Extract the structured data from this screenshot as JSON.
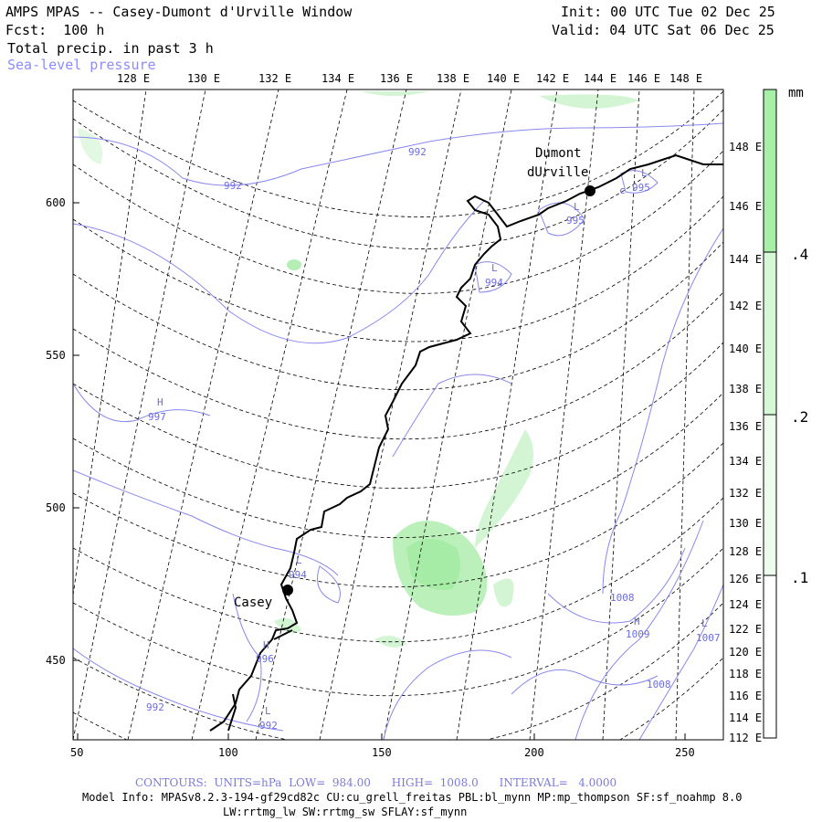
{
  "header": {
    "title": "AMPS MPAS -- Casey-Dumont d'Urville Window",
    "fcst": "Fcst:  100 h",
    "field": "Total precip. in past 3 h",
    "overlay": "Sea-level pressure",
    "init": "Init: 00 UTC Tue 02 Dec 25",
    "valid": "Valid: 04 UTC Sat 06 Dec 25"
  },
  "axes": {
    "x_ticks": [
      "50",
      "100",
      "150",
      "200",
      "250"
    ],
    "y_ticks": [
      "450",
      "500",
      "550",
      "600"
    ],
    "top_lon": [
      "128 E",
      "130 E",
      "132 E",
      "134 E",
      "136 E",
      "138 E",
      "140 E",
      "142 E",
      "144 E",
      "146 E",
      "148 E"
    ],
    "right_lon": [
      "148 E",
      "146 E",
      "144 E",
      "142 E",
      "140 E",
      "138 E",
      "136 E",
      "134 E",
      "132 E",
      "130 E",
      "128 E",
      "126 E",
      "124 E",
      "122 E",
      "120 E",
      "118 E",
      "116 E",
      "114 E",
      "112 E"
    ]
  },
  "colorbar": {
    "unit": "mm",
    "labels": [
      ".4",
      ".2",
      ".1"
    ],
    "color": "#a8f0a8"
  },
  "stations": [
    {
      "name": "Dumont",
      "name2": "dUrville"
    },
    {
      "name": "Casey"
    }
  ],
  "pressure_labels": [
    "992",
    "992",
    "995",
    "995",
    "994",
    "997",
    "994",
    "1008",
    "1009",
    "1008",
    "1007",
    "996",
    "992",
    "992"
  ],
  "pressure_centers": [
    "L",
    "L",
    "L",
    "H",
    "L",
    "H",
    "H",
    "L",
    "L",
    "c"
  ],
  "footer": {
    "contours": "CONTOURS:  UNITS=hPa  LOW=  984.00      HIGH=  1008.0      INTERVAL=   4.0000",
    "model_info": "Model Info: MPASv8.2.3-194-gf29cd82c CU:cu_grell_freitas PBL:bl_mynn MP:mp_thompson SF:sf_noahmp 8.0",
    "model_info2": "LW:rrtmg_lw SW:rrtmg_sw SFLAY:sf_mynn"
  },
  "colors": {
    "contour": "#8888ee",
    "precip": "#a8f0a8",
    "grid": "#000000"
  }
}
